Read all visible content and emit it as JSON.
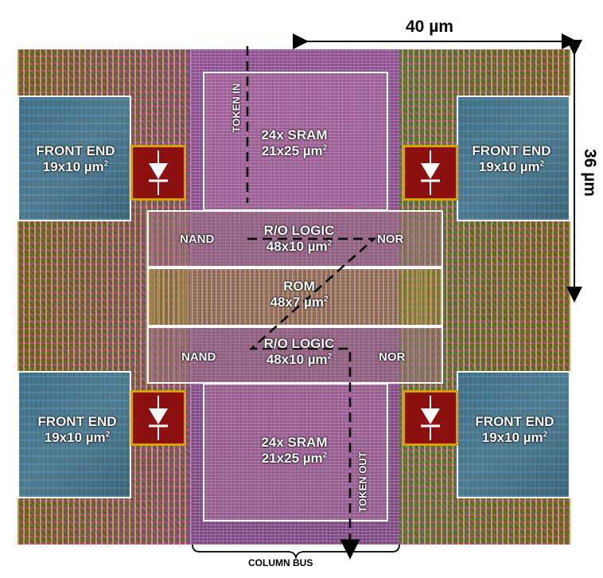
{
  "dimensions": {
    "width_label": "40 µm",
    "height_label": "36 µm"
  },
  "front_end": {
    "title": "FRONT END",
    "size": "19x10 µm",
    "exp": "2"
  },
  "sram": {
    "title": "24x SRAM",
    "size": "21x25 µm",
    "exp": "2"
  },
  "ro_logic": {
    "title": "R/O LOGIC",
    "size": "48x10 µm",
    "exp": "2",
    "left": "NAND",
    "right": "NOR"
  },
  "rom": {
    "title": "ROM",
    "size": "48x7 µm",
    "exp": "2"
  },
  "token": {
    "in": "TOKEN IN",
    "out": "TOKEN OUT"
  },
  "column_bus": "COLUMN BUS",
  "colors": {
    "outline": "#ffffff",
    "diode_fill": "#8c1010",
    "front_end_fill": "#4d7a8f",
    "dashed_path": "#000000"
  }
}
